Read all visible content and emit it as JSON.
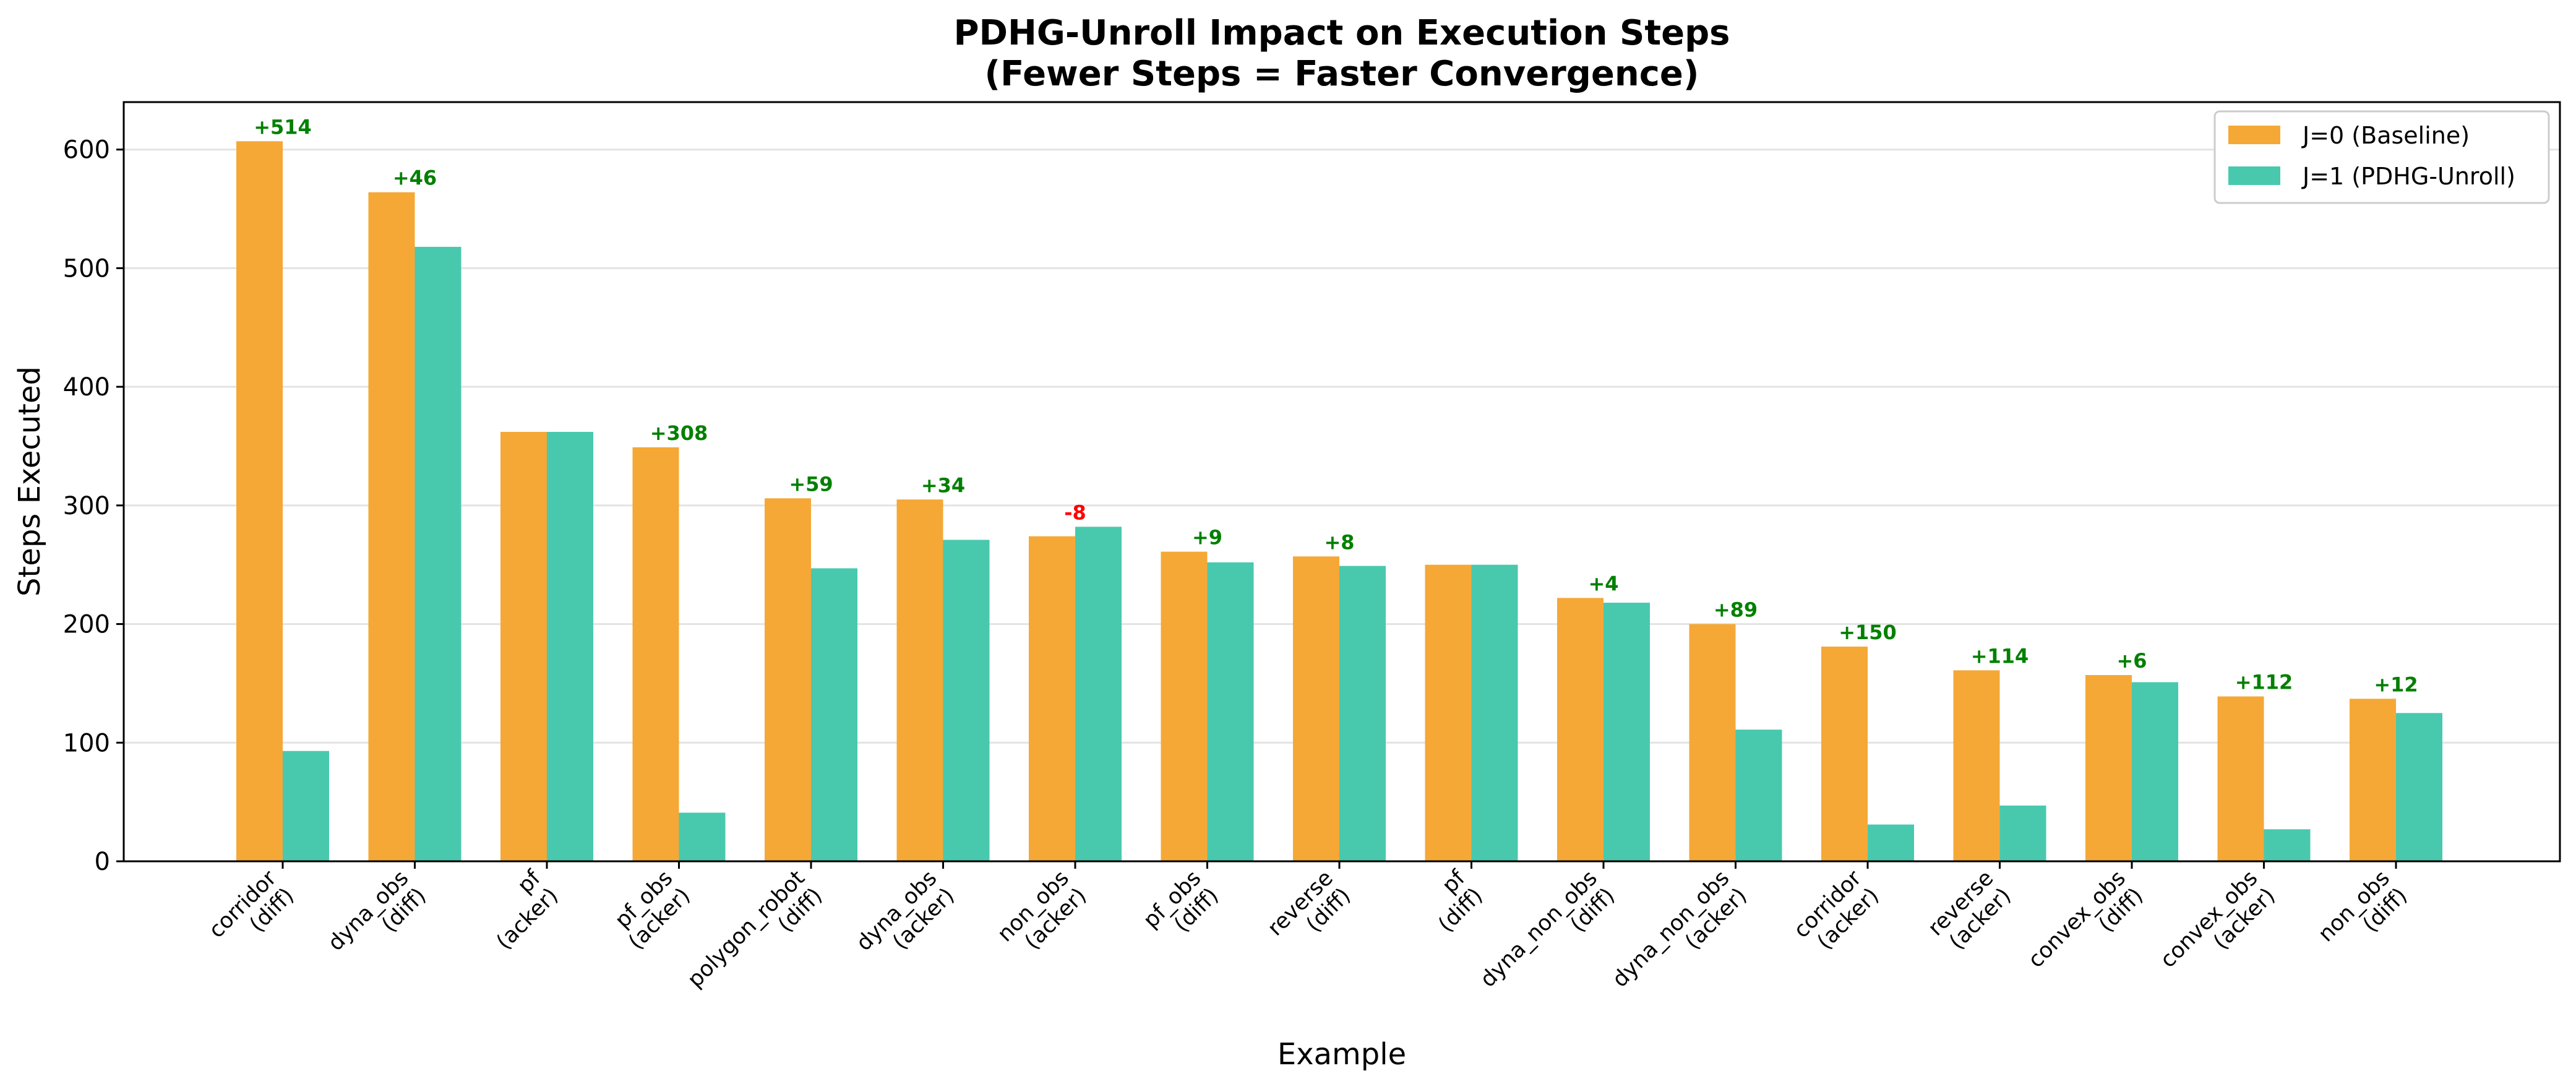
{
  "chart_data": {
    "type": "bar",
    "title": "PDHG-Unroll Impact on Execution Steps",
    "subtitle": "(Fewer Steps = Faster Convergence)",
    "xlabel": "Example",
    "ylabel": "Steps Executed",
    "ylim": [
      0,
      640
    ],
    "yticks": [
      0,
      100,
      200,
      300,
      400,
      500,
      600
    ],
    "grid": "y",
    "legend_position": "top-right",
    "categories": [
      [
        "corridor",
        "(diff)"
      ],
      [
        "dyna_obs",
        "(diff)"
      ],
      [
        "pf",
        "(acker)"
      ],
      [
        "pf_obs",
        "(acker)"
      ],
      [
        "polygon_robot",
        "(diff)"
      ],
      [
        "dyna_obs",
        "(acker)"
      ],
      [
        "non_obs",
        "(acker)"
      ],
      [
        "pf_obs",
        "(diff)"
      ],
      [
        "reverse",
        "(diff)"
      ],
      [
        "pf",
        "(diff)"
      ],
      [
        "dyna_non_obs",
        "(diff)"
      ],
      [
        "dyna_non_obs",
        "(acker)"
      ],
      [
        "corridor",
        "(acker)"
      ],
      [
        "reverse",
        "(acker)"
      ],
      [
        "convex_obs",
        "(diff)"
      ],
      [
        "convex_obs",
        "(acker)"
      ],
      [
        "non_obs",
        "(diff)"
      ]
    ],
    "series": [
      {
        "name": "J=0 (Baseline)",
        "color": "#f5a836",
        "values": [
          607,
          564,
          362,
          349,
          306,
          305,
          274,
          261,
          257,
          250,
          222,
          200,
          181,
          161,
          157,
          139,
          137
        ]
      },
      {
        "name": "J=1 (PDHG-Unroll)",
        "color": "#48c9ae",
        "values": [
          93,
          518,
          362,
          41,
          247,
          271,
          282,
          252,
          249,
          250,
          218,
          111,
          31,
          47,
          151,
          27,
          125
        ]
      }
    ],
    "annotations": [
      "+514",
      "+46",
      "",
      "+308",
      "+59",
      "+34",
      "-8",
      "+9",
      "+8",
      "",
      "+4",
      "+89",
      "+150",
      "+114",
      "+6",
      "+112",
      "+12"
    ],
    "annotation_colors": {
      "positive": "#008000",
      "negative": "#ff0000"
    }
  }
}
